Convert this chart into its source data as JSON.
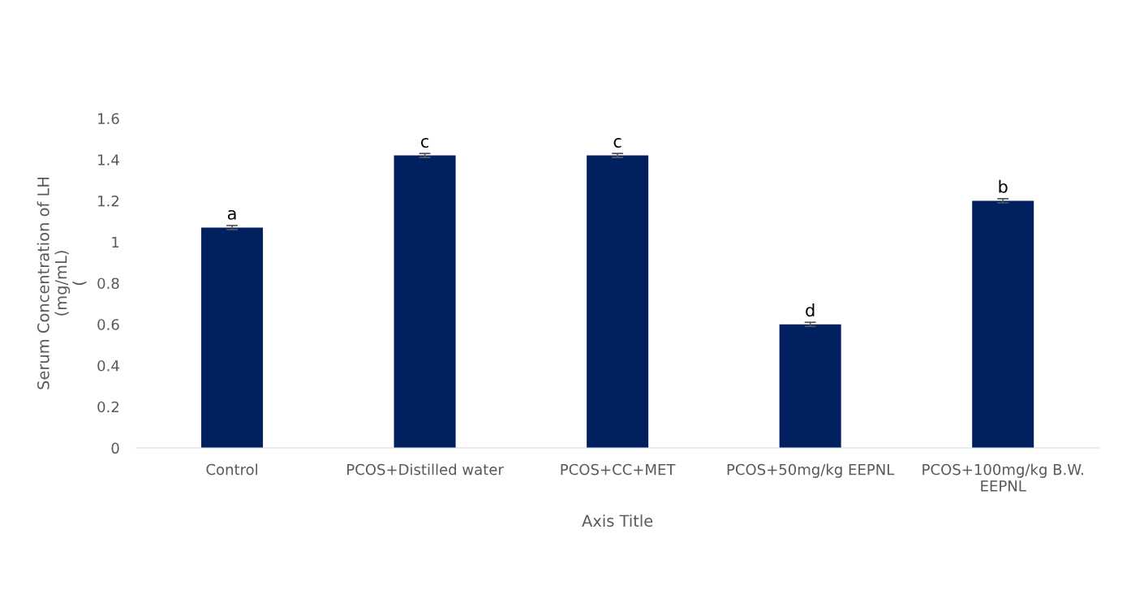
{
  "chart_data": {
    "type": "bar",
    "categories": [
      "Control",
      "PCOS+Distilled water",
      "PCOS+CC+MET",
      "PCOS+50mg/kg EEPNL",
      "PCOS+100mg/kg B.W.\nEEPNL"
    ],
    "values": [
      1.07,
      1.42,
      1.42,
      0.6,
      1.2
    ],
    "errors": [
      0.01,
      0.01,
      0.01,
      0.01,
      0.01
    ],
    "color": "#002060",
    "xlabel": "Axis Title",
    "ylabel": "Serum Concentration of LH\n(mg/mL)\n(",
    "ylim": [
      0,
      1.6
    ],
    "yticks": [
      {
        "value": 0,
        "label": "0"
      },
      0.2,
      0.4,
      0.6,
      0.8,
      {
        "value": 1,
        "label": "1"
      },
      1.2,
      1.4,
      1.6
    ],
    "grid": false,
    "legend": false,
    "annotations": [
      {
        "text": "a",
        "x": "Control",
        "y": 1.07
      },
      {
        "text": "c",
        "x": "PCOS+Distilled water",
        "y": 1.42
      },
      {
        "text": "c",
        "x": "PCOS+CC+MET",
        "y": 1.42
      },
      {
        "text": "d",
        "x": "PCOS+50mg/kg EEPNL",
        "y": 0.6
      },
      {
        "text": "b",
        "x": "PCOS+100mg/kg B.W.\nEEPNL",
        "y": 1.2
      }
    ]
  }
}
